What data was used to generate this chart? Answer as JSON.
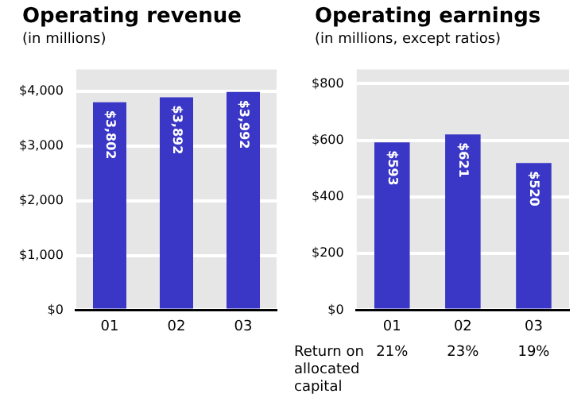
{
  "chart_data": [
    {
      "type": "bar",
      "title": "Operating revenue",
      "subtitle": "(in millions)",
      "categories": [
        "01",
        "02",
        "03"
      ],
      "values": [
        3802,
        3892,
        3992
      ],
      "color": "#3a36c6",
      "value_labels": [
        "$3,802",
        "$3,892",
        "$3,992"
      ],
      "ylim": [
        0,
        4400
      ],
      "yticks": [
        {
          "value": 0,
          "label": "$0"
        },
        {
          "value": 1000,
          "label": "$1,000"
        },
        {
          "value": 2000,
          "label": "$2,000"
        },
        {
          "value": 3000,
          "label": "$3,000"
        },
        {
          "value": 4000,
          "label": "$4,000"
        }
      ],
      "grid": "y",
      "legend": false
    },
    {
      "type": "bar",
      "title": "Operating earnings",
      "subtitle": "(in millions, except ratios)",
      "categories": [
        "01",
        "02",
        "03"
      ],
      "values": [
        593,
        621,
        520
      ],
      "color": "#3a36c6",
      "value_labels": [
        "$593",
        "$621",
        "$520"
      ],
      "ylim": [
        0,
        850
      ],
      "yticks": [
        {
          "value": 0,
          "label": "$0"
        },
        {
          "value": 200,
          "label": "$200"
        },
        {
          "value": 400,
          "label": "$400"
        },
        {
          "value": 600,
          "label": "$600"
        },
        {
          "value": 800,
          "label": "$800"
        }
      ],
      "grid": "y",
      "legend": false,
      "annotations": [
        "Return on allocated capital",
        "21%",
        "23%",
        "19%"
      ]
    }
  ]
}
